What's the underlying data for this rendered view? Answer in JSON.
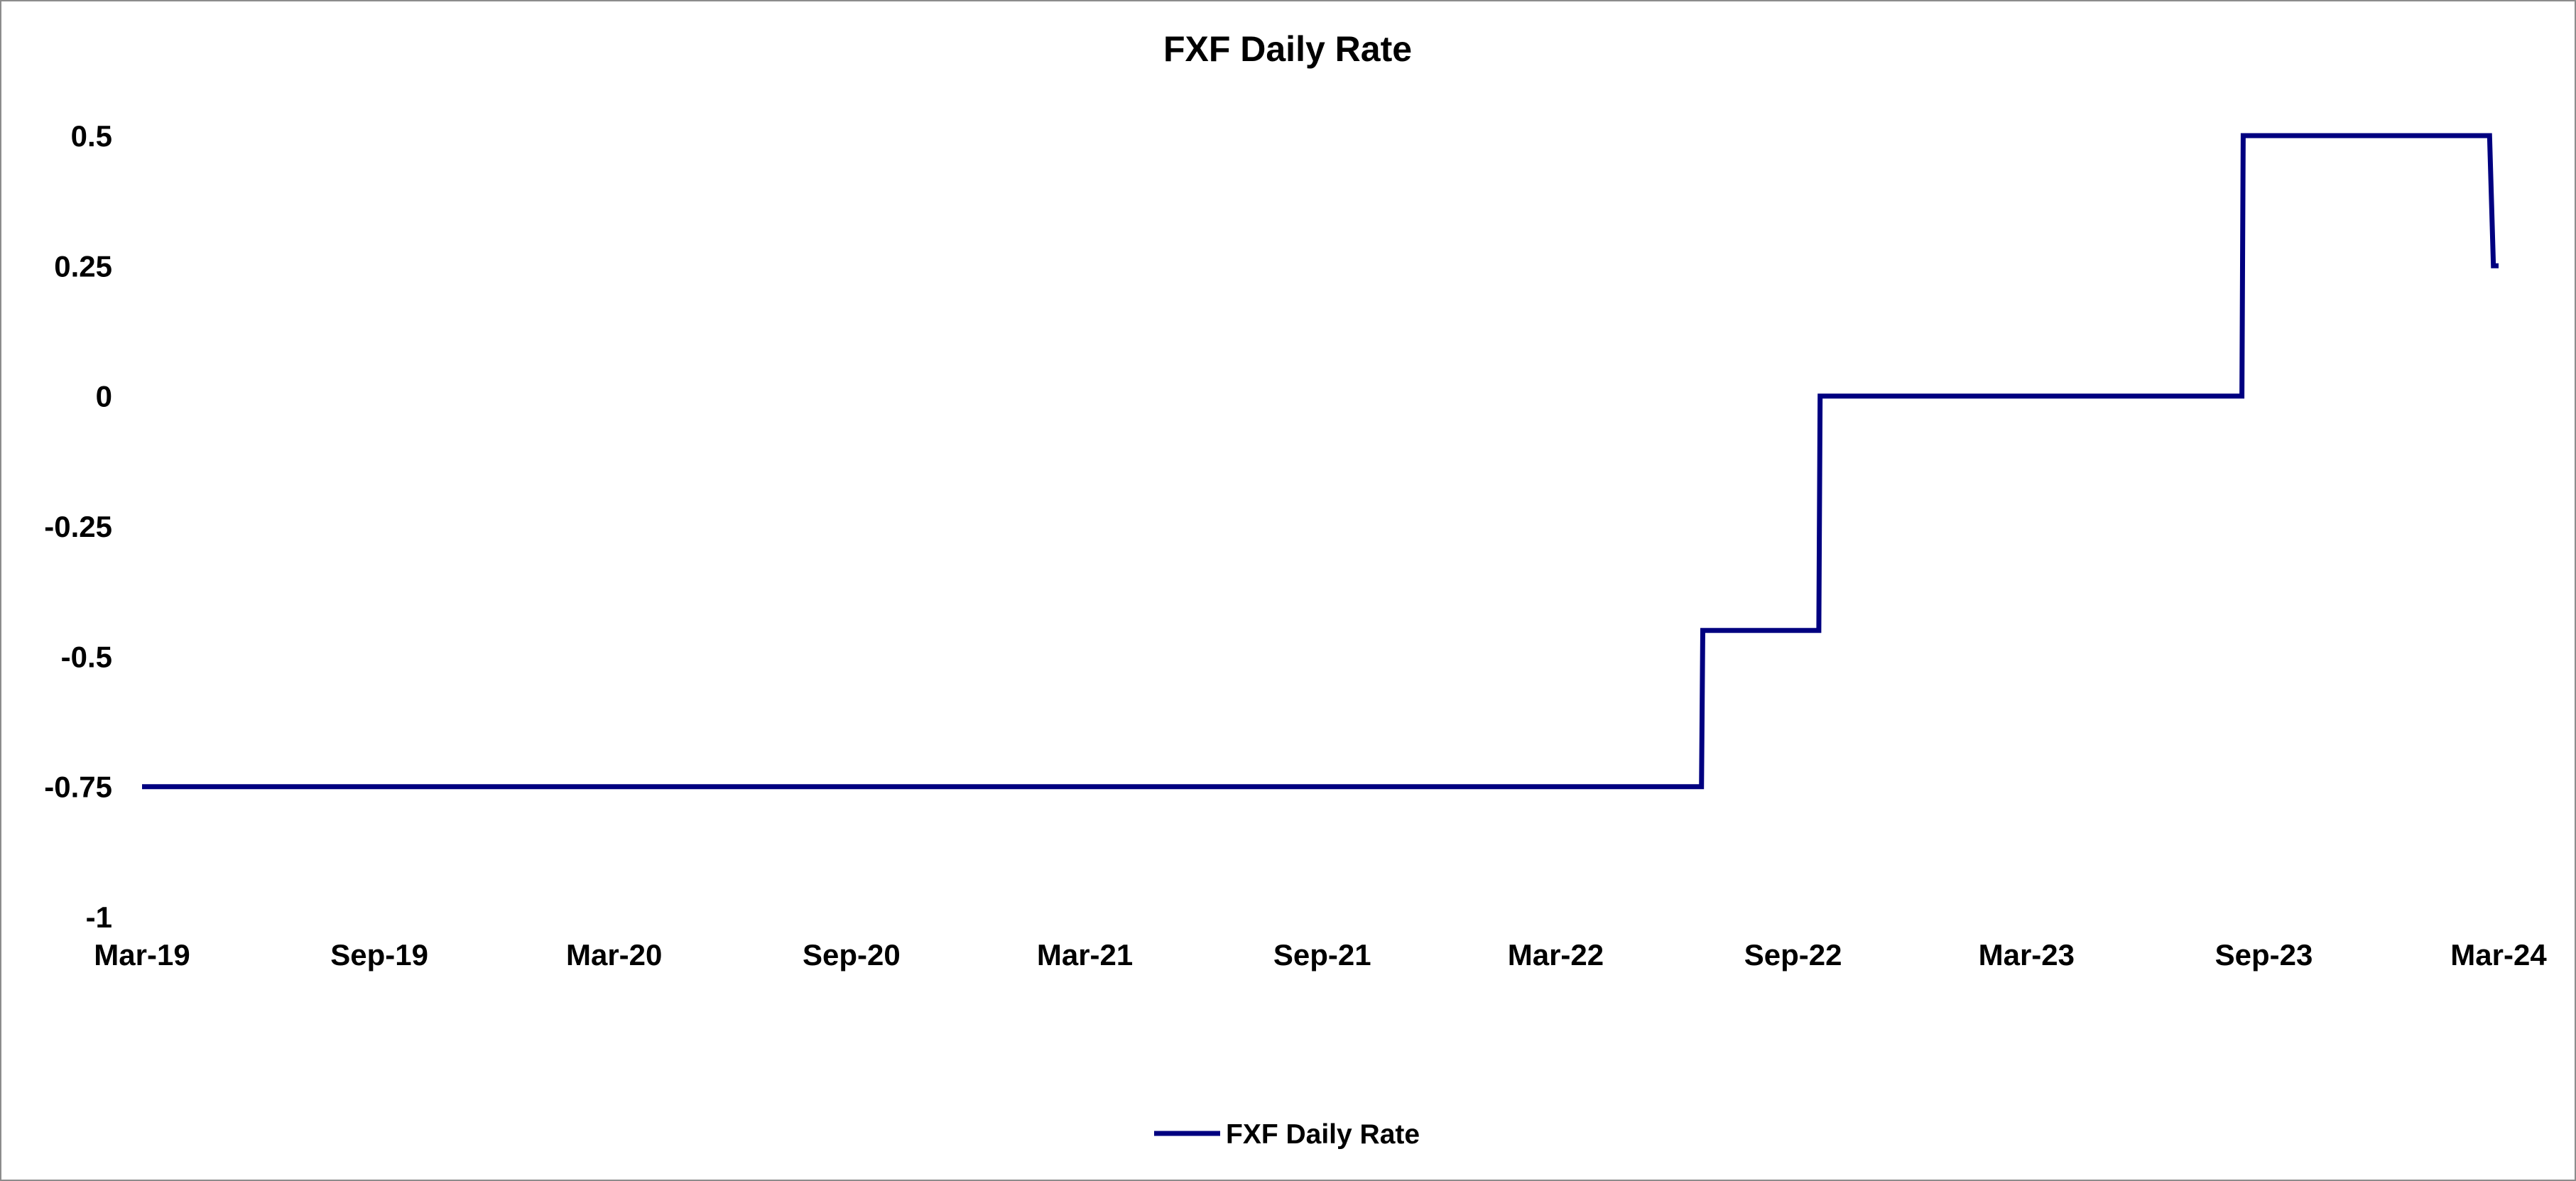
{
  "chart_data": {
    "type": "line",
    "title": "FXF Daily Rate",
    "xlabel": "",
    "ylabel": "",
    "x_axis": {
      "type": "date",
      "range": [
        "2019-03-01",
        "2024-03-01"
      ],
      "ticks": [
        "2019-03-01",
        "2019-09-01",
        "2020-03-01",
        "2020-09-01",
        "2021-03-01",
        "2021-09-01",
        "2022-03-01",
        "2022-09-01",
        "2023-03-01",
        "2023-09-01",
        "2024-03-01"
      ],
      "tick_labels": [
        "Mar-19",
        "Sep-19",
        "Mar-20",
        "Sep-20",
        "Mar-21",
        "Sep-21",
        "Mar-22",
        "Sep-22",
        "Mar-23",
        "Sep-23",
        "Mar-24"
      ]
    },
    "y_axis": {
      "range": [
        -1,
        0.5
      ],
      "ticks": [
        0.5,
        0.25,
        0,
        -0.25,
        -0.5,
        -0.75,
        -1
      ],
      "tick_labels": [
        "0.5",
        "0.25",
        "0",
        "-0.25",
        "-0.5",
        "-0.75",
        "-1"
      ]
    },
    "grid": false,
    "legend": {
      "position": "bottom"
    },
    "series": [
      {
        "name": "FXF Daily Rate",
        "color": "#000080",
        "x": [
          "2019-03-01",
          "2022-06-22",
          "2022-06-23",
          "2022-09-21",
          "2022-09-22",
          "2023-08-15",
          "2023-08-16",
          "2024-02-23",
          "2024-02-26",
          "2024-03-01"
        ],
        "y": [
          -0.75,
          -0.75,
          -0.45,
          -0.45,
          0,
          0,
          0.5,
          0.5,
          0.25,
          0.25
        ]
      }
    ]
  }
}
